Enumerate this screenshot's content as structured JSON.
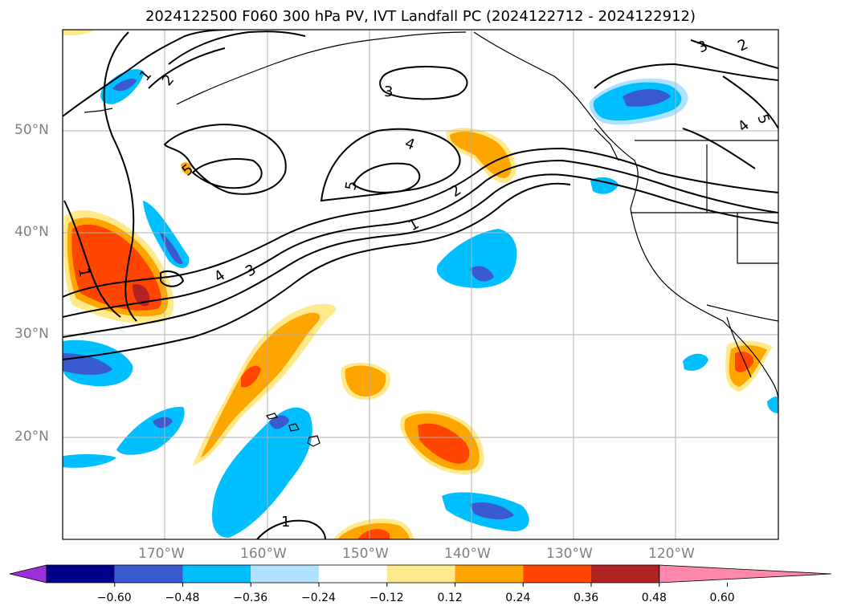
{
  "title": "2024122500 F060 300 hPa PV, IVT Landfall PC (2024122712 - 2024122912)",
  "lat_labels": [
    "50°N",
    "40°N",
    "30°N",
    "20°N"
  ],
  "lon_labels": [
    "170°W",
    "160°W",
    "150°W",
    "140°W",
    "130°W",
    "120°W"
  ],
  "contour_labels": [
    "1",
    "2",
    "3",
    "4",
    "5",
    "3",
    "2",
    "1",
    "4",
    "5",
    "4",
    "5",
    "3",
    "2",
    "1",
    "1"
  ],
  "colorbar": {
    "ticks": [
      "−0.60",
      "−0.48",
      "−0.36",
      "−0.24",
      "−0.12",
      "0.12",
      "0.24",
      "0.36",
      "0.48",
      "0.60"
    ],
    "colors": [
      "#9b30d9",
      "#00008b",
      "#3a5bd0",
      "#00bfff",
      "#b0e2ff",
      "#ffffff",
      "#ffe98a",
      "#ffa500",
      "#ff4500",
      "#b22222",
      "#ff88aa"
    ]
  }
}
